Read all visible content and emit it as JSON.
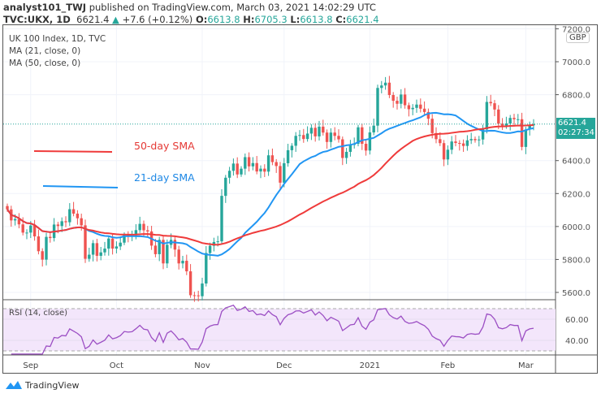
{
  "header": {
    "author": "analyst101_TWJ",
    "published": "published on TradingView.com, March 03, 2021 14:02:29 UTC",
    "symbol": "TVC:UKX, 1D",
    "last": "6621.4",
    "change": "+7.6 (+0.12%)",
    "o_label": "O:",
    "o": "6613.8",
    "h_label": "H:",
    "h": "6705.3",
    "l_label": "L:",
    "l": "6613.8",
    "c_label": "C:",
    "c": "6621.4"
  },
  "legend": {
    "title": "UK 100 Index, 1D, TVC",
    "ma21": "MA (21, close, 0)",
    "ma50": "MA (50, close, 0)",
    "rsi": "RSI (14, close)"
  },
  "annotations": {
    "sma50": "50-day SMA",
    "sma21": "21-day SMA"
  },
  "price_axis": {
    "currency": "GBP",
    "last_label": "6621.4",
    "countdown": "02:27:34"
  },
  "logo": "TradingView",
  "colors": {
    "up": "#26a69a",
    "down": "#ef5350",
    "ma21": "#2196f3",
    "ma50": "#ef3b3b",
    "rsi": "#9c4fc4",
    "rsi_band": "#f3e6fb"
  },
  "chart_data": {
    "type": "candlestick",
    "title": "UK 100 Index, 1D, TVC",
    "ylim": [
      5560,
      7200
    ],
    "y_ticks": [
      5600,
      5800,
      6000,
      6200,
      6400,
      6800,
      7000,
      7200
    ],
    "y_tick_labels": [
      "5600.0",
      "5800.0",
      "6000.0",
      "6200.0",
      "6400.0",
      "6800.0",
      "7000.0",
      "7200.0"
    ],
    "x_tick_labels": [
      "Sep",
      "Oct",
      "Nov",
      "Dec",
      "2021",
      "Feb",
      "Mar"
    ],
    "x_tick_index": [
      6,
      28,
      50,
      71,
      93,
      113,
      133
    ],
    "closes": [
      6104,
      6037,
      6045,
      6013,
      5963,
      5963,
      6006,
      5940,
      5850,
      5799,
      5937,
      5930,
      6012,
      6003,
      6032,
      6026,
      6105,
      6078,
      6050,
      6007,
      5804,
      5829,
      5899,
      5822,
      5843,
      5866,
      5927,
      5866,
      5879,
      5902,
      5949,
      5942,
      5946,
      5978,
      6016,
      5977,
      5970,
      5884,
      5832,
      5919,
      5776,
      5889,
      5919,
      5860,
      5776,
      5792,
      5728,
      5583,
      5582,
      5577,
      5654,
      5839,
      5883,
      5906,
      5910,
      6186,
      6296,
      6338,
      6382,
      6316,
      6351,
      6421,
      6365,
      6385,
      6334,
      6351,
      6333,
      6432,
      6391,
      6367,
      6266,
      6384,
      6463,
      6490,
      6550,
      6555,
      6531,
      6564,
      6599,
      6547,
      6606,
      6570,
      6513,
      6570,
      6550,
      6529,
      6416,
      6453,
      6495,
      6502,
      6602,
      6502,
      6461,
      6571,
      6612,
      6841,
      6856,
      6873,
      6798,
      6763,
      6745,
      6801,
      6736,
      6712,
      6720,
      6740,
      6715,
      6695,
      6654,
      6567,
      6530,
      6506,
      6407,
      6466,
      6516,
      6507,
      6504,
      6489,
      6523,
      6531,
      6524,
      6528,
      6589,
      6756,
      6748,
      6710,
      6624,
      6612,
      6625,
      6659,
      6651,
      6651,
      6483,
      6589,
      6613.8,
      6621.4
    ],
    "series": [
      {
        "name": "MA (21, close, 0)",
        "period": 21
      },
      {
        "name": "MA (50, close, 0)",
        "period": 50
      }
    ],
    "rsi": {
      "period": 14,
      "ylim": [
        25,
        75
      ],
      "ticks": [
        40,
        60
      ],
      "tick_labels": [
        "40.00",
        "60.00"
      ],
      "band": [
        30,
        70
      ]
    }
  }
}
